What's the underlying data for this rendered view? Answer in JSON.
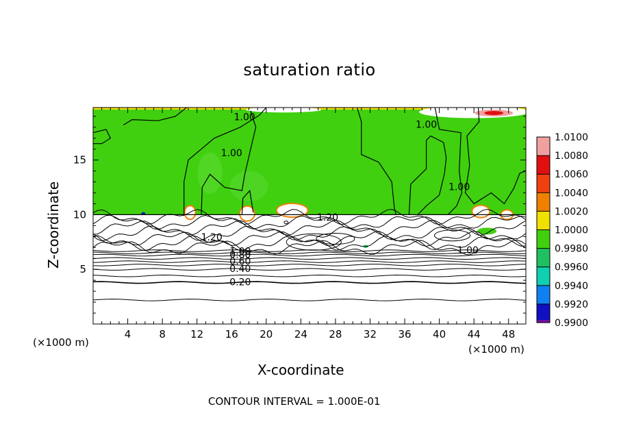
{
  "chart_data": {
    "type": "heatmap",
    "title": "saturation ratio",
    "xlabel": "X-coordinate",
    "ylabel": "Z-coordinate",
    "x_unit": "(×1000 m)",
    "footnote": "CONTOUR INTERVAL = 1.000E-01",
    "xlim": [
      0,
      50
    ],
    "ylim": [
      0,
      19.8
    ],
    "x_ticks": [
      4,
      8,
      12,
      16,
      20,
      24,
      28,
      32,
      36,
      40,
      44,
      48
    ],
    "y_ticks": [
      5,
      10,
      15
    ],
    "colorbar": {
      "labels": [
        "1.0100",
        "1.0080",
        "1.0060",
        "1.0040",
        "1.0020",
        "1.0000",
        "0.9980",
        "0.9960",
        "0.9940",
        "0.9920",
        "0.9900"
      ],
      "colors": [
        "#f0a0a0",
        "#e01010",
        "#f04010",
        "#f08000",
        "#f0e000",
        "#40d010",
        "#20c060",
        "#10d0b0",
        "#1080f0",
        "#1010c0",
        "#7010a0"
      ]
    },
    "contour_labels": [
      {
        "text": "0.20",
        "x": 17.0,
        "y": 3.8
      },
      {
        "text": "0.40",
        "x": 17.0,
        "y": 5.0
      },
      {
        "text": "0.60",
        "x": 17.0,
        "y": 5.7
      },
      {
        "text": "0.80",
        "x": 17.0,
        "y": 6.3
      },
      {
        "text": "1.00",
        "x": 17.0,
        "y": 6.6
      },
      {
        "text": "1.20",
        "x": 13.7,
        "y": 7.9
      },
      {
        "text": "1.20",
        "x": 27.1,
        "y": 9.7
      },
      {
        "text": "1.00",
        "x": 43.3,
        "y": 6.7
      },
      {
        "text": "1.00",
        "x": 16.0,
        "y": 15.6
      },
      {
        "text": "1.00",
        "x": 17.5,
        "y": 18.9
      },
      {
        "text": "1.00",
        "x": 38.5,
        "y": 18.2
      },
      {
        "text": "1.00",
        "x": 42.3,
        "y": 12.5
      }
    ],
    "regions": [
      {
        "name": "upper",
        "z_range": [
          10,
          19.8
        ],
        "value": "1.0000"
      },
      {
        "name": "lower",
        "z_range": [
          0,
          10
        ],
        "value": "below 0.9900 (uncolored)"
      }
    ],
    "grid": false,
    "legend": "colorbar right"
  }
}
